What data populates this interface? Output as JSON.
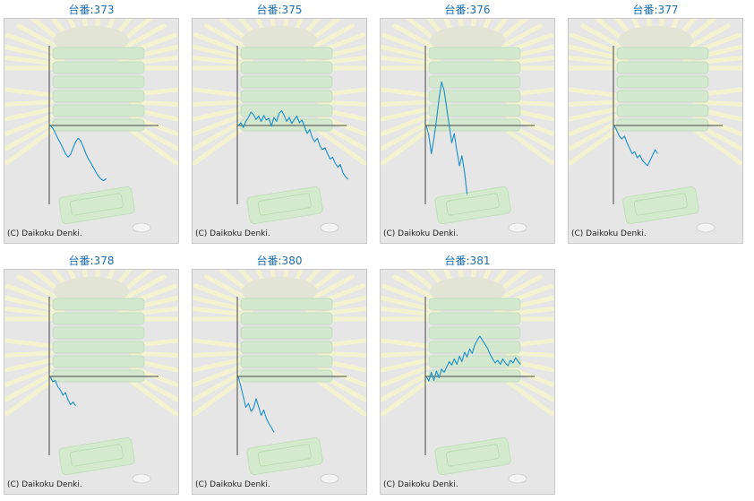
{
  "copyright": "(C) Daikoku Denki.",
  "chart_data": [
    {
      "type": "line",
      "title": "台番:373",
      "series": [
        {
          "values": [
            0,
            -40,
            -110,
            -190,
            -260,
            -340,
            -420,
            -470,
            -430,
            -330,
            -240,
            -190,
            -230,
            -320,
            -420,
            -500,
            -560,
            -630,
            -700,
            -760,
            -800,
            -820,
            -790
          ]
        }
      ]
    },
    {
      "type": "line",
      "title": "台番:375",
      "series": [
        {
          "values": [
            0,
            40,
            -30,
            60,
            120,
            200,
            160,
            90,
            140,
            60,
            150,
            80,
            110,
            -10,
            120,
            60,
            180,
            220,
            150,
            60,
            120,
            30,
            90,
            140,
            40,
            80,
            -20,
            -120,
            -60,
            -180,
            -240,
            -190,
            -300,
            -360,
            -330,
            -420,
            -500,
            -470,
            -560,
            -620,
            -580,
            -700,
            -760,
            -800
          ]
        },
        {
          "values": []
        }
      ]
    },
    {
      "type": "line",
      "title": "台番:376",
      "series": [
        {
          "values": [
            0,
            -150,
            -420,
            -200,
            80,
            400,
            650,
            520,
            260,
            0,
            -260,
            -120,
            -380,
            -600,
            -450,
            -700,
            -1020
          ]
        }
      ]
    },
    {
      "type": "line",
      "title": "台番:377",
      "series": [
        {
          "values": [
            0,
            -80,
            -160,
            -200,
            -160,
            -260,
            -340,
            -420,
            -390,
            -480,
            -440,
            -520,
            -560,
            -600,
            -520,
            -440,
            -360,
            -420
          ]
        }
      ]
    },
    {
      "type": "line",
      "title": "台番:378",
      "series": [
        {
          "values": [
            0,
            -80,
            -60,
            -150,
            -200,
            -280,
            -240,
            -350,
            -420,
            -380,
            -440
          ]
        }
      ]
    },
    {
      "type": "line",
      "title": "台番:380",
      "series": [
        {
          "values": [
            0,
            -150,
            -300,
            -460,
            -400,
            -520,
            -470,
            -330,
            -450,
            -580,
            -500,
            -620,
            -700,
            -760,
            -830
          ]
        }
      ]
    },
    {
      "type": "line",
      "title": "台番:381",
      "series": [
        {
          "values": [
            0,
            -70,
            60,
            -60,
            80,
            -20,
            110,
            60,
            140,
            220,
            170,
            260,
            180,
            300,
            220,
            360,
            290,
            410,
            340,
            470,
            540,
            600,
            540,
            480,
            420,
            330,
            260,
            200,
            240,
            180,
            260,
            200,
            160,
            240,
            200,
            280,
            220,
            180
          ]
        }
      ]
    }
  ]
}
